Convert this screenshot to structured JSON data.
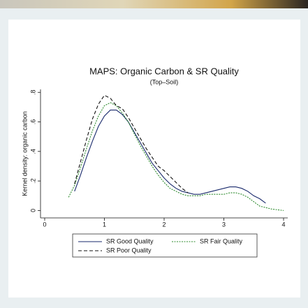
{
  "chart_data": {
    "type": "line",
    "title": "MAPS: Organic Carbon & SR Quality",
    "subtitle": "(Top–Soil)",
    "y_label": "Kernel density: organic carbon",
    "x": [
      0.4,
      0.5,
      0.6,
      0.7,
      0.8,
      0.9,
      1.0,
      1.1,
      1.2,
      1.3,
      1.4,
      1.5,
      1.6,
      1.7,
      1.8,
      1.9,
      2.0,
      2.1,
      2.2,
      2.3,
      2.4,
      2.5,
      2.6,
      2.7,
      2.8,
      2.9,
      3.0,
      3.1,
      3.2,
      3.3,
      3.4,
      3.5,
      3.6,
      3.7,
      3.8,
      3.9,
      4.0
    ],
    "series": [
      {
        "name": "SR Good Quality",
        "color": "#1a2a6c",
        "dash": "solid",
        "values": [
          null,
          0.13,
          0.24,
          0.36,
          0.47,
          0.57,
          0.64,
          0.68,
          0.68,
          0.65,
          0.6,
          0.53,
          0.46,
          0.39,
          0.32,
          0.27,
          0.22,
          0.18,
          0.15,
          0.13,
          0.12,
          0.11,
          0.11,
          0.12,
          0.13,
          0.14,
          0.15,
          0.16,
          0.16,
          0.15,
          0.13,
          0.1,
          0.08,
          0.05,
          null,
          null,
          null
        ]
      },
      {
        "name": "SR Fair Quality",
        "color": "#2e8b2e",
        "dash": "dotted",
        "values": [
          0.09,
          0.17,
          0.29,
          0.42,
          0.54,
          0.64,
          0.71,
          0.73,
          0.71,
          0.66,
          0.6,
          0.52,
          0.44,
          0.37,
          0.3,
          0.24,
          0.19,
          0.15,
          0.13,
          0.11,
          0.1,
          0.1,
          0.1,
          0.11,
          0.11,
          0.11,
          0.11,
          0.12,
          0.12,
          0.11,
          0.09,
          0.06,
          0.03,
          0.02,
          0.01,
          0.005,
          0
        ]
      },
      {
        "name": "SR Poor Quality",
        "color": "#111111",
        "dash": "dashed",
        "values": [
          null,
          0.18,
          0.33,
          0.48,
          0.62,
          0.72,
          0.78,
          0.76,
          0.71,
          0.69,
          0.63,
          0.56,
          0.49,
          0.42,
          0.36,
          0.3,
          0.27,
          0.23,
          0.19,
          0.15,
          0.12,
          null,
          null,
          null,
          null,
          null,
          null,
          null,
          null,
          null,
          null,
          null,
          null,
          null,
          null,
          null,
          null
        ]
      }
    ],
    "xlim": [
      -0.07,
      4.07
    ],
    "xticks": [
      0,
      1,
      2,
      3,
      4
    ],
    "ylim": [
      -0.05,
      0.82
    ],
    "yticks": [
      0,
      {
        "value": 0.2,
        "label": ".2"
      },
      {
        "value": 0.4,
        "label": ".4"
      },
      {
        "value": 0.6,
        "label": ".6"
      },
      {
        "value": 0.8,
        "label": ".8"
      }
    ],
    "grid": false
  }
}
